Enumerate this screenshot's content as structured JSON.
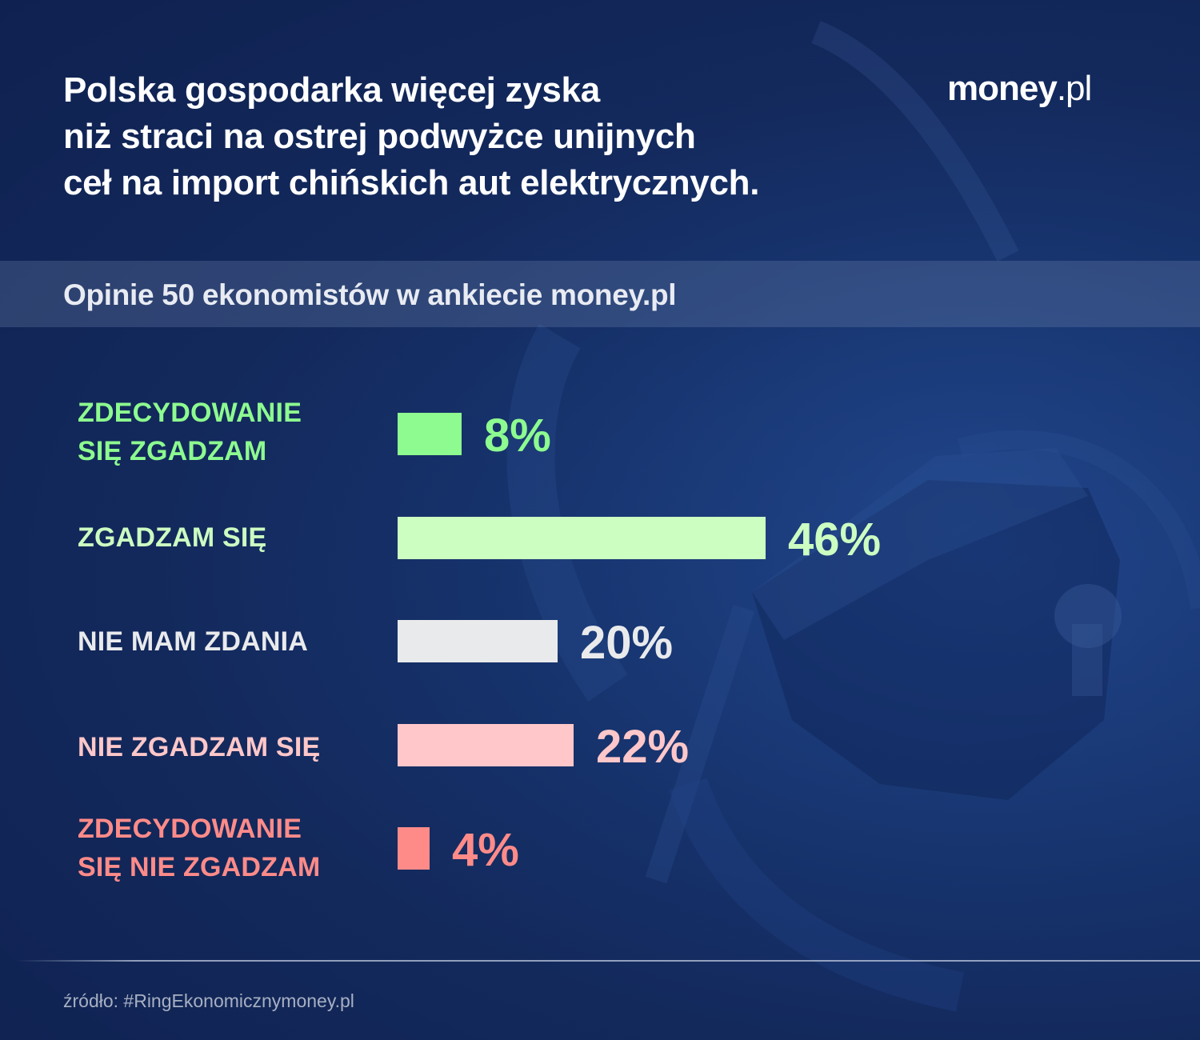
{
  "header": {
    "title_lines": [
      "Polska gospodarka więcej zyska",
      "niż straci na ostrej podwyżce unijnych",
      "ceł na import chińskich aut elektrycznych."
    ],
    "logo": {
      "main": "money",
      "suffix": ".pl"
    }
  },
  "subtitle": "Opinie 50 ekonomistów w ankiecie money.pl",
  "rows": [
    {
      "label_lines": [
        "ZDECYDOWANIE",
        "SIĘ ZGADZAM"
      ],
      "value": 8,
      "value_label": "8%",
      "color": "#8dfb8f",
      "label_color": "#8dfb8f"
    },
    {
      "label_lines": [
        "ZGADZAM SIĘ"
      ],
      "value": 46,
      "value_label": "46%",
      "color": "#ccfdc1",
      "label_color": "#ccfdc1"
    },
    {
      "label_lines": [
        "NIE MAM ZDANIA"
      ],
      "value": 20,
      "value_label": "20%",
      "color": "#e9eaec",
      "label_color": "#e9eaec"
    },
    {
      "label_lines": [
        "NIE ZGADZAM SIĘ"
      ],
      "value": 22,
      "value_label": "22%",
      "color": "#ffc7c9",
      "label_color": "#ffc7c9"
    },
    {
      "label_lines": [
        "ZDECYDOWANIE",
        "SIĘ NIE ZGADZAM"
      ],
      "value": 4,
      "value_label": "4%",
      "color": "#ff8b89",
      "label_color": "#ff8b89"
    }
  ],
  "footer": {
    "source": "źródło: #RingEkonomicznymoney.pl"
  },
  "colors": {
    "background": "#13295c",
    "band": "#3a4d78"
  },
  "chart_data": {
    "type": "bar",
    "orientation": "horizontal",
    "title": "Polska gospodarka więcej zyska niż straci na ostrej podwyżce unijnych ceł na import chińskich aut elektrycznych.",
    "subtitle": "Opinie 50 ekonomistów w ankiecie money.pl",
    "categories": [
      "Zdecydowanie się zgadzam",
      "Zgadzam się",
      "Nie mam zdania",
      "Nie zgadzam się",
      "Zdecydowanie się nie zgadzam"
    ],
    "values": [
      8,
      46,
      20,
      22,
      4
    ],
    "unit": "%",
    "colors": [
      "#8dfb8f",
      "#ccfdc1",
      "#e9eaec",
      "#ffc7c9",
      "#ff8b89"
    ],
    "xlabel": "",
    "ylabel": "",
    "grid": false,
    "legend": null,
    "source": "źródło: #RingEkonomicznymoney.pl"
  }
}
